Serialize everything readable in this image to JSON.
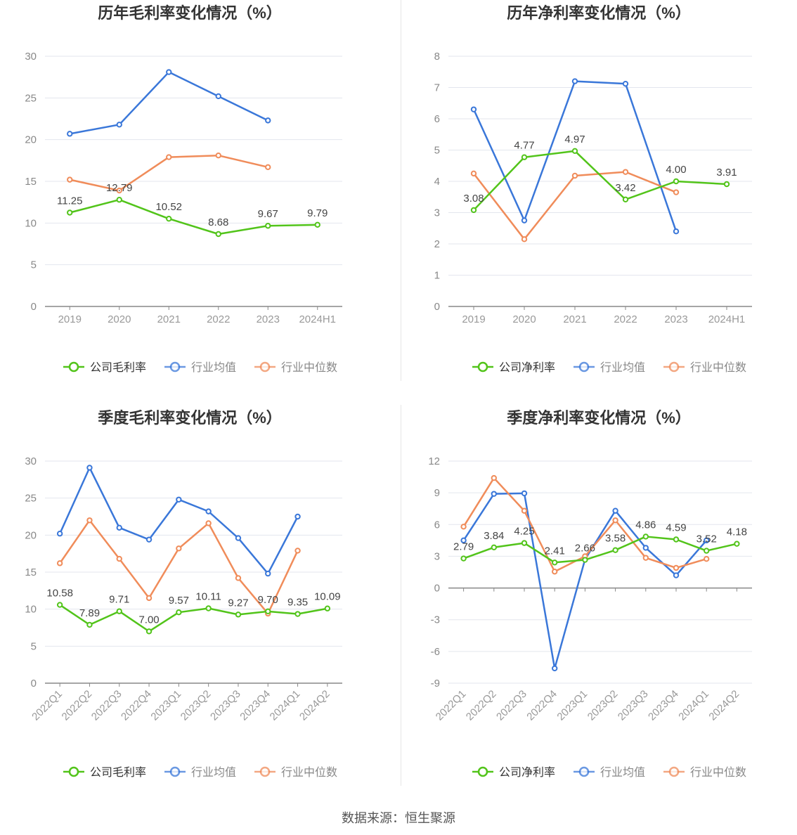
{
  "charts": [
    {
      "type": "line",
      "title": "历年毛利率变化情况（%）",
      "categories": [
        "2019",
        "2020",
        "2021",
        "2022",
        "2023",
        "2024H1"
      ],
      "ylim": [
        0,
        30
      ],
      "yticks": [
        0,
        5,
        10,
        15,
        20,
        25,
        30
      ],
      "x_label_rotate": false,
      "series": [
        {
          "name": "公司毛利率",
          "color": "#52c41a",
          "values": [
            11.25,
            12.79,
            10.52,
            8.68,
            9.67,
            9.79
          ],
          "labels": [
            "11.25",
            "12.79",
            "10.52",
            "8.68",
            "9.67",
            "9.79"
          ]
        },
        {
          "name": "行业均值",
          "color": "#3a77d9",
          "values": [
            20.7,
            21.8,
            28.1,
            25.2,
            22.3,
            null
          ]
        },
        {
          "name": "行业中位数",
          "color": "#f08c5a",
          "values": [
            15.2,
            13.9,
            17.9,
            18.1,
            16.7,
            null
          ]
        }
      ]
    },
    {
      "type": "line",
      "title": "历年净利率变化情况（%）",
      "categories": [
        "2019",
        "2020",
        "2021",
        "2022",
        "2023",
        "2024H1"
      ],
      "ylim": [
        0,
        8
      ],
      "yticks": [
        0,
        1,
        2,
        3,
        4,
        5,
        6,
        7,
        8
      ],
      "x_label_rotate": false,
      "series": [
        {
          "name": "公司净利率",
          "color": "#52c41a",
          "values": [
            3.08,
            4.77,
            4.97,
            3.42,
            4.0,
            3.91
          ],
          "labels": [
            "3.08",
            "4.77",
            "4.97",
            "3.42",
            "4.00",
            "3.91"
          ]
        },
        {
          "name": "行业均值",
          "color": "#3a77d9",
          "values": [
            6.3,
            2.75,
            7.2,
            7.12,
            2.4,
            null
          ]
        },
        {
          "name": "行业中位数",
          "color": "#f08c5a",
          "values": [
            4.25,
            2.15,
            4.18,
            4.3,
            3.65,
            null
          ]
        }
      ]
    },
    {
      "type": "line",
      "title": "季度毛利率变化情况（%）",
      "categories": [
        "2022Q1",
        "2022Q2",
        "2022Q3",
        "2022Q4",
        "2023Q1",
        "2023Q2",
        "2023Q3",
        "2023Q4",
        "2024Q1",
        "2024Q2"
      ],
      "ylim": [
        0,
        30
      ],
      "yticks": [
        0,
        5,
        10,
        15,
        20,
        25,
        30
      ],
      "x_label_rotate": true,
      "series": [
        {
          "name": "公司毛利率",
          "color": "#52c41a",
          "values": [
            10.58,
            7.89,
            9.71,
            7.0,
            9.57,
            10.11,
            9.27,
            9.7,
            9.35,
            10.09
          ],
          "labels": [
            "10.58",
            "7.89",
            "9.71",
            "7.00",
            "9.57",
            "10.11",
            "9.27",
            "9.70",
            "9.35",
            "10.09"
          ]
        },
        {
          "name": "行业均值",
          "color": "#3a77d9",
          "values": [
            20.2,
            29.1,
            21.0,
            19.4,
            24.8,
            23.2,
            19.6,
            14.8,
            22.5,
            null
          ]
        },
        {
          "name": "行业中位数",
          "color": "#f08c5a",
          "values": [
            16.2,
            22.0,
            16.8,
            11.5,
            18.2,
            21.6,
            14.2,
            9.4,
            17.9,
            null
          ]
        }
      ]
    },
    {
      "type": "line",
      "title": "季度净利率变化情况（%）",
      "categories": [
        "2022Q1",
        "2022Q2",
        "2022Q3",
        "2022Q4",
        "2023Q1",
        "2023Q2",
        "2023Q3",
        "2023Q4",
        "2024Q1",
        "2024Q2"
      ],
      "ylim": [
        -9,
        12
      ],
      "yticks": [
        -9,
        -6,
        -3,
        0,
        3,
        6,
        9,
        12
      ],
      "x_label_rotate": true,
      "series": [
        {
          "name": "公司净利率",
          "color": "#52c41a",
          "values": [
            2.79,
            3.84,
            4.25,
            2.41,
            2.66,
            3.58,
            4.86,
            4.59,
            3.52,
            4.18
          ],
          "labels": [
            "2.79",
            "3.84",
            "4.25",
            "2.41",
            "2.66",
            "3.58",
            "4.86",
            "4.59",
            "3.52",
            "4.18"
          ]
        },
        {
          "name": "行业均值",
          "color": "#3a77d9",
          "values": [
            4.5,
            8.9,
            8.95,
            -7.6,
            2.7,
            7.3,
            3.8,
            1.2,
            4.5,
            null
          ]
        },
        {
          "name": "行业中位数",
          "color": "#f08c5a",
          "values": [
            5.8,
            10.4,
            7.3,
            1.55,
            3.0,
            6.4,
            2.85,
            1.9,
            2.75,
            null
          ]
        }
      ]
    }
  ],
  "footer": "数据来源：恒生聚源"
}
